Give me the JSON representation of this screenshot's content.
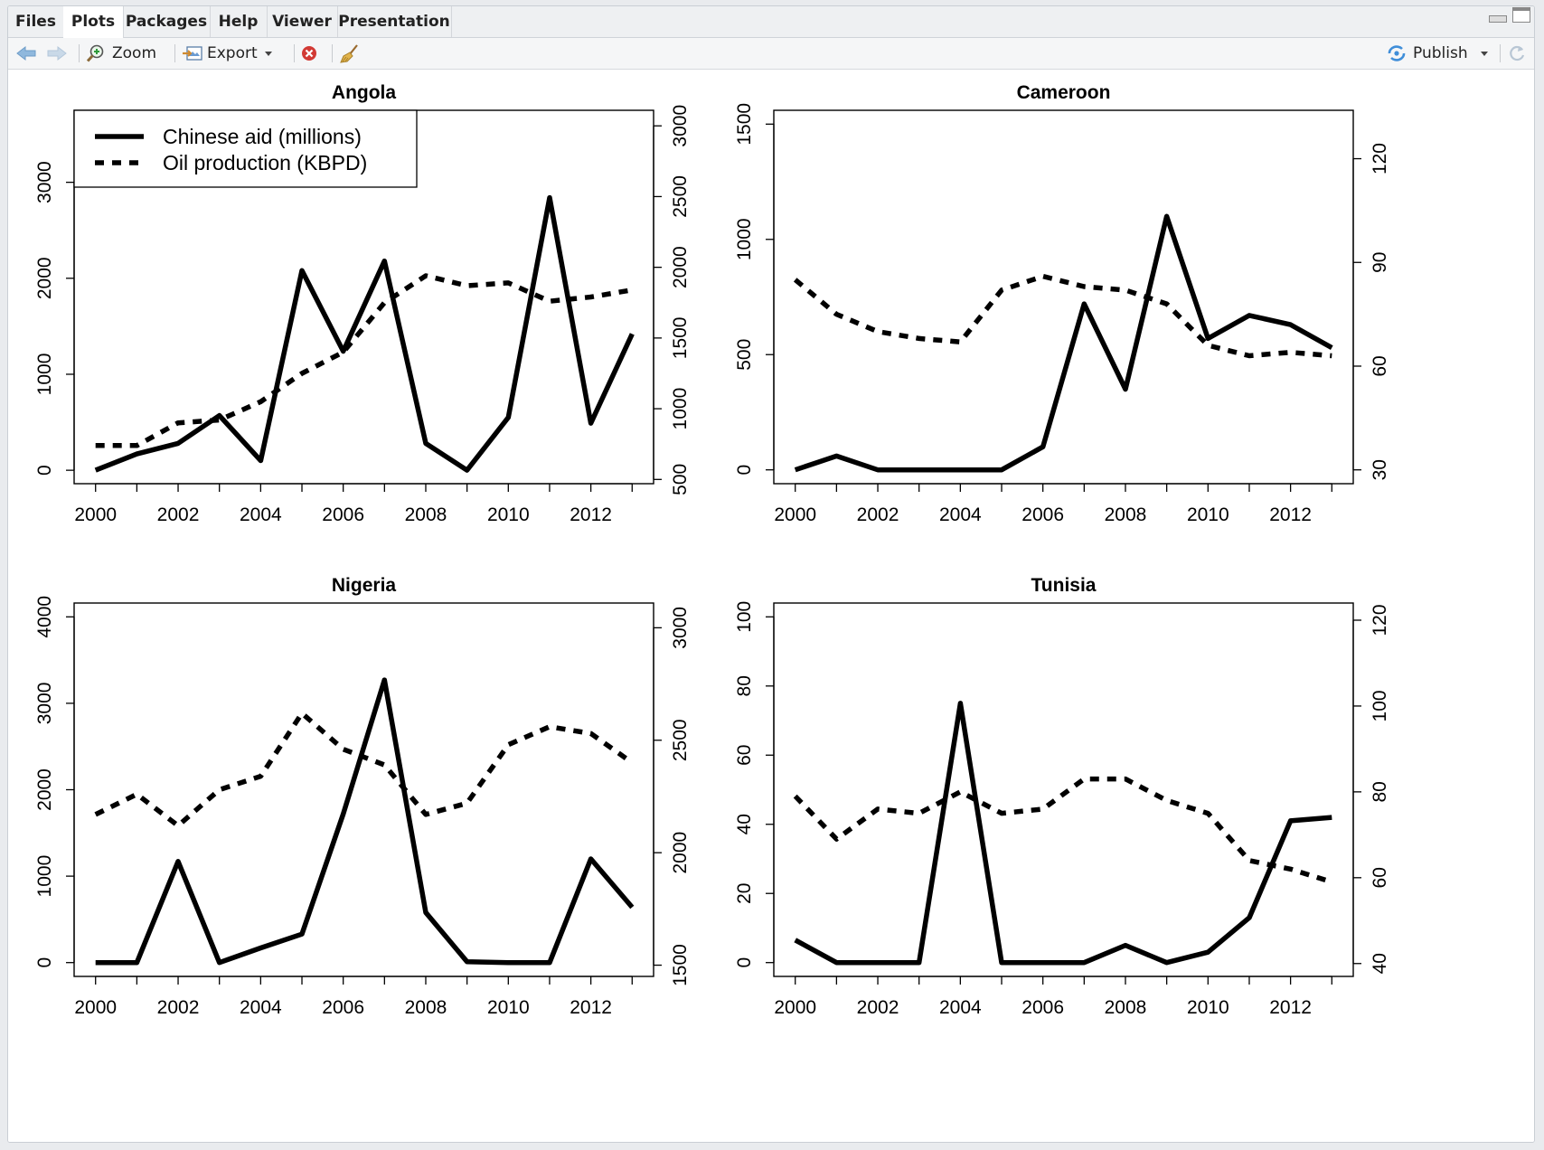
{
  "tabs": [
    {
      "label": "Files",
      "active": false
    },
    {
      "label": "Plots",
      "active": true
    },
    {
      "label": "Packages",
      "active": false
    },
    {
      "label": "Help",
      "active": false
    },
    {
      "label": "Viewer",
      "active": false
    },
    {
      "label": "Presentation",
      "active": false
    }
  ],
  "toolbar": {
    "zoom_label": "Zoom",
    "export_label": "Export",
    "publish_label": "Publish"
  },
  "legend": {
    "aid": "Chinese aid (millions)",
    "oil": "Oil production (KBPD)"
  },
  "chart_data": [
    {
      "type": "line",
      "title": "Angola",
      "x": [
        2000,
        2001,
        2002,
        2003,
        2004,
        2005,
        2006,
        2007,
        2008,
        2009,
        2010,
        2011,
        2012,
        2013
      ],
      "xticks": [
        2000,
        2002,
        2004,
        2006,
        2008,
        2010,
        2012
      ],
      "left_ticks": [
        0,
        1000,
        2000,
        3000
      ],
      "right_ticks": [
        500,
        1000,
        1500,
        2000,
        2500,
        3000
      ],
      "left_lim": [
        -140,
        3750
      ],
      "right_lim": [
        470,
        3110
      ],
      "legend": "top-left",
      "series": [
        {
          "name": "Chinese aid (millions)",
          "axis": "left",
          "style": "solid",
          "values": [
            0,
            170,
            280,
            570,
            100,
            2080,
            1240,
            2180,
            280,
            0,
            550,
            2840,
            490,
            1420
          ]
        },
        {
          "name": "Oil production (KBPD)",
          "axis": "right",
          "style": "dashed",
          "values": [
            740,
            740,
            900,
            920,
            1050,
            1250,
            1400,
            1750,
            1940,
            1870,
            1890,
            1760,
            1790,
            1840
          ]
        }
      ]
    },
    {
      "type": "line",
      "title": "Cameroon",
      "x": [
        2000,
        2001,
        2002,
        2003,
        2004,
        2005,
        2006,
        2007,
        2008,
        2009,
        2010,
        2011,
        2012,
        2013
      ],
      "xticks": [
        2000,
        2002,
        2004,
        2006,
        2008,
        2010,
        2012
      ],
      "left_ticks": [
        0,
        500,
        1000,
        1500
      ],
      "right_ticks": [
        30,
        60,
        90,
        120
      ],
      "left_lim": [
        -60,
        1560
      ],
      "right_lim": [
        26,
        134
      ],
      "series": [
        {
          "name": "Chinese aid (millions)",
          "axis": "left",
          "style": "solid",
          "values": [
            0,
            60,
            0,
            0,
            0,
            0,
            100,
            720,
            350,
            1100,
            570,
            670,
            630,
            530
          ]
        },
        {
          "name": "Oil production (KBPD)",
          "axis": "right",
          "style": "dashed",
          "values": [
            85,
            75,
            70,
            68,
            67,
            82,
            86,
            83,
            82,
            78,
            66,
            63,
            64,
            63
          ]
        }
      ]
    },
    {
      "type": "line",
      "title": "Nigeria",
      "x": [
        2000,
        2001,
        2002,
        2003,
        2004,
        2005,
        2006,
        2007,
        2008,
        2009,
        2010,
        2011,
        2012,
        2013
      ],
      "xticks": [
        2000,
        2002,
        2004,
        2006,
        2008,
        2010,
        2012
      ],
      "left_ticks": [
        0,
        1000,
        2000,
        3000,
        4000
      ],
      "right_ticks": [
        1500,
        2000,
        2500,
        3000
      ],
      "left_lim": [
        -160,
        4160
      ],
      "right_lim": [
        1450,
        3110
      ],
      "series": [
        {
          "name": "Chinese aid (millions)",
          "axis": "left",
          "style": "solid",
          "values": [
            0,
            0,
            1170,
            0,
            170,
            330,
            1720,
            3270,
            580,
            10,
            0,
            0,
            1200,
            640
          ]
        },
        {
          "name": "Oil production (KBPD)",
          "axis": "right",
          "style": "dashed",
          "values": [
            2170,
            2260,
            2120,
            2280,
            2340,
            2620,
            2460,
            2390,
            2170,
            2220,
            2480,
            2560,
            2530,
            2400
          ]
        }
      ]
    },
    {
      "type": "line",
      "title": "Tunisia",
      "x": [
        2000,
        2001,
        2002,
        2003,
        2004,
        2005,
        2006,
        2007,
        2008,
        2009,
        2010,
        2011,
        2012,
        2013
      ],
      "xticks": [
        2000,
        2002,
        2004,
        2006,
        2008,
        2010,
        2012
      ],
      "left_ticks": [
        0,
        20,
        40,
        60,
        80,
        100
      ],
      "right_ticks": [
        40,
        60,
        80,
        100,
        120
      ],
      "left_lim": [
        -4,
        104
      ],
      "right_lim": [
        37,
        124
      ],
      "series": [
        {
          "name": "Chinese aid (millions)",
          "axis": "left",
          "style": "solid",
          "values": [
            6.5,
            0,
            0,
            0,
            75,
            0,
            0,
            0,
            5,
            0,
            3,
            13,
            41,
            42
          ]
        },
        {
          "name": "Oil production (KBPD)",
          "axis": "right",
          "style": "dashed",
          "values": [
            79,
            69,
            76,
            75,
            80,
            75,
            76,
            83,
            83,
            78,
            75,
            64,
            62,
            59
          ]
        }
      ]
    }
  ]
}
